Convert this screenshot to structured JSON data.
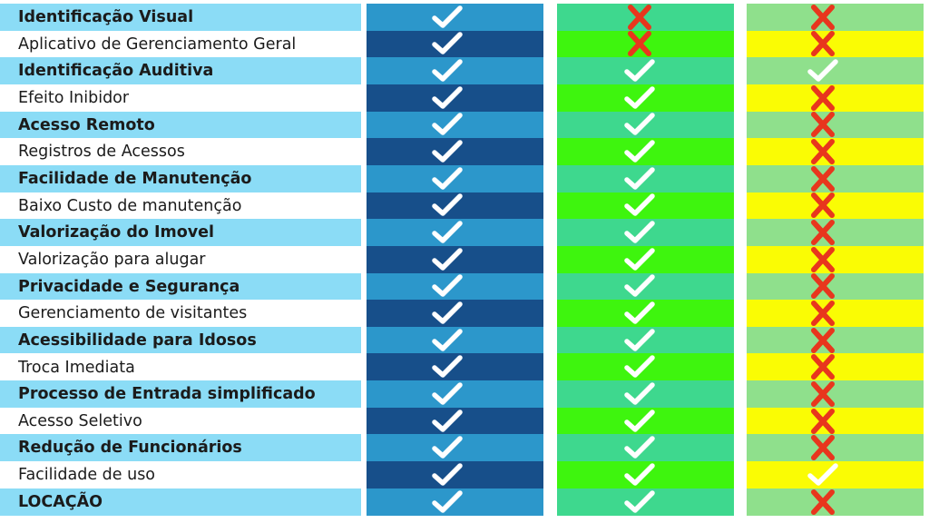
{
  "colors": {
    "label_row_odd": "#8bdcf6",
    "label_row_even": "#ffffff",
    "col1_odd": "#2c97cb",
    "col1_even": "#174f8a",
    "col2_odd": "#3ed88e",
    "col2_even": "#3ef50e",
    "col3_odd": "#8fe08c",
    "col3_even": "#fafc04",
    "check": "#ffffff",
    "cross": "#e8361d",
    "text": "#1b1b1b"
  },
  "icons": {
    "check": "check-icon",
    "cross": "cross-icon"
  },
  "rows": [
    {
      "label": "Identificação Visual",
      "bold": true,
      "marks": [
        "check",
        "cross",
        "cross"
      ]
    },
    {
      "label": "Aplicativo de Gerenciamento Geral",
      "bold": false,
      "marks": [
        "check",
        "cross",
        "cross"
      ]
    },
    {
      "label": "Identificação Auditiva",
      "bold": true,
      "marks": [
        "check",
        "check",
        "check"
      ]
    },
    {
      "label": "Efeito Inibidor",
      "bold": false,
      "marks": [
        "check",
        "check",
        "cross"
      ]
    },
    {
      "label": "Acesso Remoto",
      "bold": true,
      "marks": [
        "check",
        "check",
        "cross"
      ]
    },
    {
      "label": "Registros de Acessos",
      "bold": false,
      "marks": [
        "check",
        "check",
        "cross"
      ]
    },
    {
      "label": "Facilidade de Manutenção",
      "bold": true,
      "marks": [
        "check",
        "check",
        "cross"
      ]
    },
    {
      "label": "Baixo Custo de manutenção",
      "bold": false,
      "marks": [
        "check",
        "check",
        "cross"
      ]
    },
    {
      "label": "Valorização do Imovel",
      "bold": true,
      "marks": [
        "check",
        "check",
        "cross"
      ]
    },
    {
      "label": "Valorização para alugar",
      "bold": false,
      "marks": [
        "check",
        "check",
        "cross"
      ]
    },
    {
      "label": "Privacidade e Segurança",
      "bold": true,
      "marks": [
        "check",
        "check",
        "cross"
      ]
    },
    {
      "label": "Gerenciamento de visitantes",
      "bold": false,
      "marks": [
        "check",
        "check",
        "cross"
      ]
    },
    {
      "label": "Acessibilidade para Idosos",
      "bold": true,
      "marks": [
        "check",
        "check",
        "cross"
      ]
    },
    {
      "label": "Troca Imediata",
      "bold": false,
      "marks": [
        "check",
        "check",
        "cross"
      ]
    },
    {
      "label": "Processo de Entrada simplificado",
      "bold": true,
      "marks": [
        "check",
        "check",
        "cross"
      ]
    },
    {
      "label": "Acesso Seletivo",
      "bold": false,
      "marks": [
        "check",
        "check",
        "cross"
      ]
    },
    {
      "label": "Redução de Funcionários",
      "bold": true,
      "marks": [
        "check",
        "check",
        "cross"
      ]
    },
    {
      "label": "Facilidade de uso",
      "bold": false,
      "marks": [
        "check",
        "check",
        "check"
      ]
    },
    {
      "label": "LOCAÇÃO",
      "bold": true,
      "marks": [
        "check",
        "check",
        "cross"
      ]
    }
  ]
}
